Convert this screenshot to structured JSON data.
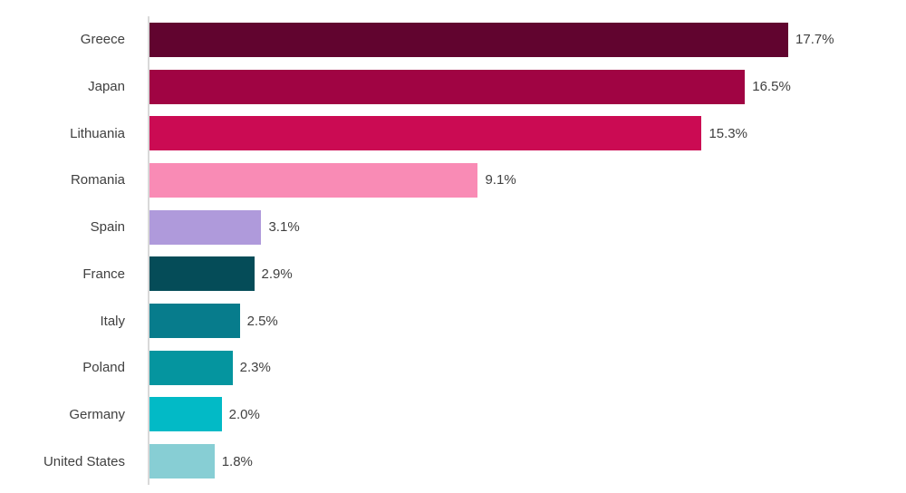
{
  "chart_data": {
    "type": "bar",
    "orientation": "horizontal",
    "title": "",
    "xlabel": "",
    "ylabel": "",
    "grid": false,
    "legend": false,
    "xlim": [
      0,
      18
    ],
    "categories": [
      "Greece",
      "Japan",
      "Lithuania",
      "Romania",
      "Spain",
      "France",
      "Italy",
      "Poland",
      "Germany",
      "United States"
    ],
    "values": [
      17.7,
      16.5,
      15.3,
      9.1,
      3.1,
      2.9,
      2.5,
      2.3,
      2.0,
      1.8
    ],
    "value_labels": [
      "17.7%",
      "16.5%",
      "15.3%",
      "9.1%",
      "3.1%",
      "2.9%",
      "2.5%",
      "2.3%",
      "2.0%",
      "1.8%"
    ],
    "bar_colors": [
      "#61042F",
      "#A00443",
      "#CB0B53",
      "#F98BB5",
      "#AF9ADB",
      "#054C58",
      "#077C8C",
      "#05959F",
      "#02BAC6",
      "#87CED4"
    ],
    "axis_line_color": "#D9D9D9",
    "label_color": "#404040",
    "background": "#FFFFFF"
  }
}
